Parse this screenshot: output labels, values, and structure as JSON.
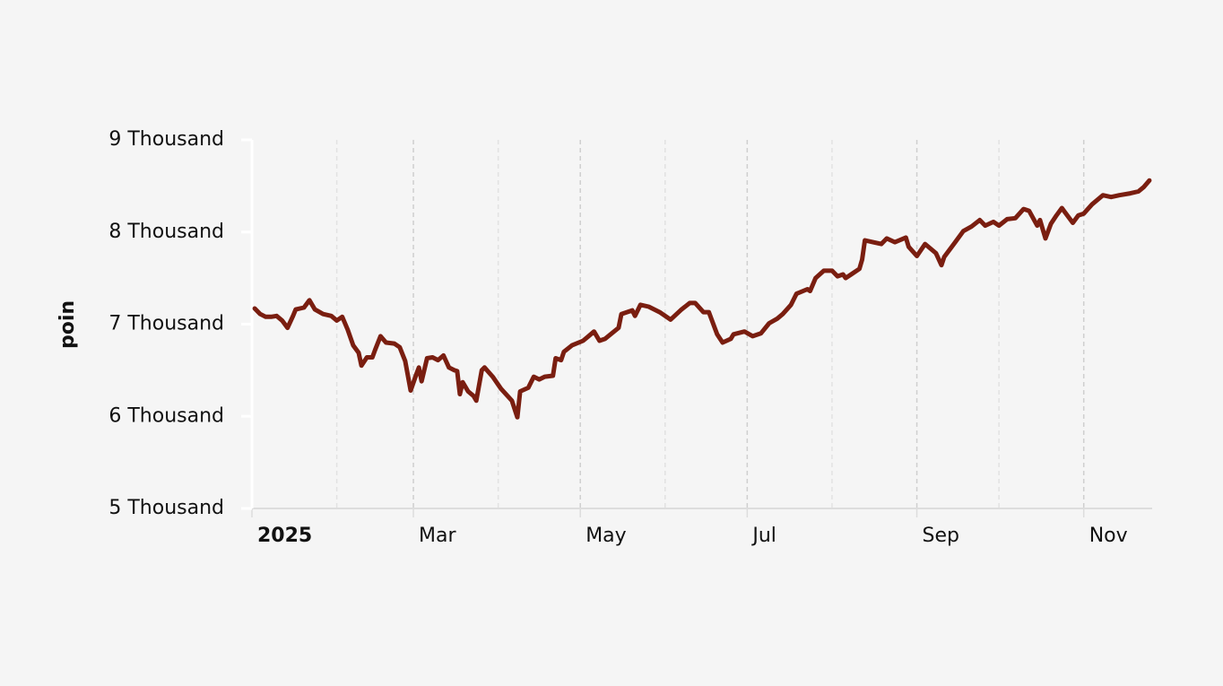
{
  "chart_data": {
    "type": "line",
    "y_label": "poin",
    "color": "#7a1e10",
    "x": [
      1,
      3,
      5,
      7,
      9,
      11,
      13,
      15,
      16,
      19,
      21,
      23,
      26,
      29,
      31,
      33,
      35,
      37,
      39,
      40,
      42,
      44,
      45,
      47,
      49,
      52,
      54,
      56,
      58,
      60,
      61,
      62,
      64,
      66,
      68,
      70,
      72,
      74,
      75,
      76,
      77,
      79,
      81,
      82,
      84,
      85,
      88,
      91,
      95,
      97,
      98,
      101,
      103,
      105,
      107,
      110,
      111,
      113,
      114,
      117,
      121,
      123,
      125,
      127,
      129,
      134,
      135,
      139,
      140,
      142,
      145,
      149,
      153,
      157,
      160,
      162,
      165,
      167,
      170,
      172,
      175,
      176,
      180,
      183,
      186,
      189,
      192,
      194,
      197,
      199,
      203,
      204,
      206,
      209,
      212,
      214,
      216,
      217,
      219,
      222,
      223,
      224,
      227,
      230,
      232,
      235,
      239,
      240,
      243,
      246,
      250,
      252,
      253,
      257,
      260,
      263,
      266,
      268,
      271,
      273,
      276,
      279,
      282,
      284,
      287,
      288,
      290,
      292,
      294,
      296,
      297,
      300,
      302,
      304,
      307,
      311,
      314,
      317,
      321,
      324,
      326,
      328
    ],
    "values": [
      7170,
      7110,
      7080,
      7080,
      7090,
      7040,
      6960,
      7090,
      7160,
      7180,
      7260,
      7160,
      7110,
      7090,
      7040,
      7080,
      6940,
      6770,
      6690,
      6550,
      6640,
      6640,
      6720,
      6870,
      6800,
      6790,
      6750,
      6600,
      6280,
      6450,
      6530,
      6380,
      6630,
      6640,
      6610,
      6660,
      6530,
      6500,
      6490,
      6240,
      6370,
      6270,
      6220,
      6170,
      6500,
      6530,
      6430,
      6300,
      6170,
      5990,
      6270,
      6310,
      6430,
      6400,
      6430,
      6440,
      6630,
      6610,
      6700,
      6770,
      6820,
      6870,
      6920,
      6820,
      6840,
      6960,
      7110,
      7150,
      7090,
      7210,
      7190,
      7130,
      7050,
      7160,
      7230,
      7230,
      7130,
      7130,
      6890,
      6800,
      6840,
      6890,
      6920,
      6870,
      6900,
      7010,
      7060,
      7110,
      7210,
      7330,
      7380,
      7360,
      7500,
      7580,
      7580,
      7520,
      7540,
      7500,
      7540,
      7600,
      7700,
      7910,
      7890,
      7870,
      7930,
      7890,
      7940,
      7840,
      7740,
      7870,
      7770,
      7640,
      7730,
      7890,
      8010,
      8060,
      8130,
      8070,
      8110,
      8070,
      8140,
      8150,
      8250,
      8230,
      8070,
      8130,
      7930,
      8090,
      8180,
      8260,
      8220,
      8100,
      8180,
      8200,
      8300,
      8400,
      8380,
      8400,
      8420,
      8440,
      8490,
      8560
    ],
    "xlim": [
      0,
      329
    ],
    "xticks": [
      {
        "value": 0,
        "label": "2025"
      },
      {
        "value": 59,
        "label": "Mar"
      },
      {
        "value": 120,
        "label": "May"
      },
      {
        "value": 181,
        "label": "Jul"
      },
      {
        "value": 243,
        "label": "Sep"
      },
      {
        "value": 304,
        "label": "Nov"
      }
    ],
    "x_minor_gridlines": [
      31,
      90,
      151,
      212,
      273
    ],
    "ylim": [
      5000,
      9000
    ],
    "yticks": [
      {
        "value": 5000,
        "label": "5 Thousand"
      },
      {
        "value": 6000,
        "label": "6 Thousand"
      },
      {
        "value": 7000,
        "label": "7 Thousand"
      },
      {
        "value": 8000,
        "label": "8 Thousand"
      },
      {
        "value": 9000,
        "label": "9 Thousand"
      }
    ],
    "grid": true
  }
}
